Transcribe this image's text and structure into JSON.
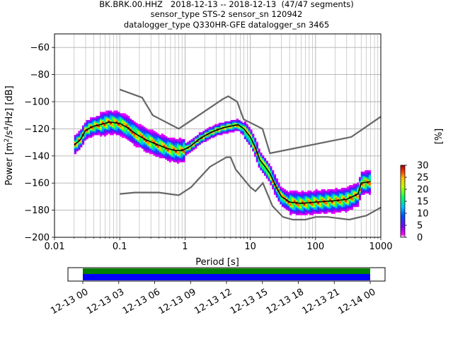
{
  "title_lines": [
    "BK.BRK.00.HHZ   2018-12-13 -- 2018-12-13  (47/47 segments)",
    "sensor_type STS-2 sensor_sn 120942",
    "datalogger_type Q330HR-GFE datalogger_sn 3465"
  ],
  "chart_data": {
    "type": "heatmap",
    "xlabel": "Period [s]",
    "ylabel_parts": [
      "Power [m",
      "2",
      "/s",
      "4",
      "/Hz] [dB]"
    ],
    "xscale": "log",
    "xlim": [
      0.01,
      1000
    ],
    "ylim": [
      -200,
      -50
    ],
    "xticks": [
      0.01,
      0.1,
      1,
      10,
      100,
      1000
    ],
    "xtick_labels": [
      "0.01",
      "0.1",
      "1",
      "10",
      "100",
      "1000"
    ],
    "yticks": [
      -200,
      -180,
      -160,
      -140,
      -120,
      -100,
      -80,
      -60
    ],
    "ytick_labels": [
      "−200",
      "−180",
      "−160",
      "−140",
      "−120",
      "−100",
      "−80",
      "−60"
    ],
    "grid": true,
    "mode_curve": [
      [
        0.02,
        -132
      ],
      [
        0.025,
        -128
      ],
      [
        0.03,
        -121
      ],
      [
        0.04,
        -118
      ],
      [
        0.05,
        -117
      ],
      [
        0.07,
        -115
      ],
      [
        0.1,
        -116
      ],
      [
        0.13,
        -119
      ],
      [
        0.18,
        -124
      ],
      [
        0.25,
        -128
      ],
      [
        0.35,
        -131
      ],
      [
        0.5,
        -134
      ],
      [
        0.7,
        -136
      ],
      [
        0.9,
        -136
      ],
      [
        1.2,
        -133
      ],
      [
        1.6,
        -128
      ],
      [
        2.2,
        -124
      ],
      [
        3,
        -121
      ],
      [
        4,
        -119
      ],
      [
        5,
        -118
      ],
      [
        6.5,
        -117
      ],
      [
        8,
        -120
      ],
      [
        10,
        -126
      ],
      [
        12,
        -134
      ],
      [
        14,
        -143
      ],
      [
        17,
        -148
      ],
      [
        20,
        -153
      ],
      [
        25,
        -163
      ],
      [
        30,
        -170
      ],
      [
        40,
        -174
      ],
      [
        60,
        -175
      ],
      [
        100,
        -174
      ],
      [
        200,
        -173
      ],
      [
        300,
        -172
      ],
      [
        450,
        -168
      ],
      [
        500,
        -160
      ],
      [
        700,
        -159
      ]
    ],
    "noise_model_high": [
      [
        0.1,
        -91
      ],
      [
        0.22,
        -97
      ],
      [
        0.32,
        -110
      ],
      [
        0.8,
        -120
      ],
      [
        3.8,
        -98
      ],
      [
        4.6,
        -96
      ],
      [
        6.3,
        -100
      ],
      [
        7.9,
        -113
      ],
      [
        15.4,
        -120
      ],
      [
        20,
        -138
      ],
      [
        354,
        -126
      ],
      [
        1000,
        -111
      ]
    ],
    "noise_model_low": [
      [
        0.1,
        -168
      ],
      [
        0.17,
        -167
      ],
      [
        0.4,
        -167
      ],
      [
        0.8,
        -169
      ],
      [
        1.24,
        -163
      ],
      [
        2.4,
        -148
      ],
      [
        4.3,
        -141
      ],
      [
        5,
        -141
      ],
      [
        6,
        -150
      ],
      [
        10,
        -163
      ],
      [
        12,
        -166
      ],
      [
        15.6,
        -160
      ],
      [
        21.9,
        -177
      ],
      [
        31.6,
        -185
      ],
      [
        45,
        -187
      ],
      [
        70,
        -187
      ],
      [
        101,
        -185
      ],
      [
        154,
        -185
      ],
      [
        328,
        -187
      ],
      [
        600,
        -184
      ],
      [
        1000,
        -178
      ]
    ],
    "colorbar": {
      "label": "[%]",
      "range": [
        0,
        30
      ],
      "ticks": [
        0,
        5,
        10,
        15,
        20,
        25,
        30
      ],
      "tick_labels": [
        "0",
        "5",
        "10",
        "15",
        "20",
        "25",
        "30"
      ]
    },
    "colors": {
      "mode_line": "#000000",
      "noise_model": "#666666",
      "grid": "#b0b0b0",
      "coverage_data": "#0000ff",
      "coverage_segments": "#008000"
    }
  },
  "timeline": {
    "tick_labels": [
      "12-13 00",
      "12-13 03",
      "12-13 06",
      "12-13 09",
      "12-13 12",
      "12-13 15",
      "12-13 18",
      "12-13 21",
      "12-14 00"
    ],
    "coverage_fraction": 1.0
  }
}
